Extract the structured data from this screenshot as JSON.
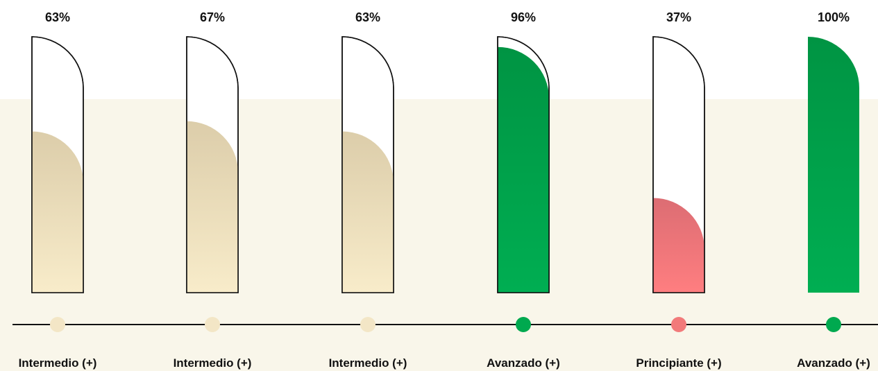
{
  "chart_data": {
    "type": "bar",
    "title": "",
    "xlabel": "",
    "ylabel": "",
    "ylim": [
      0,
      100
    ],
    "grid": false,
    "categories": [
      "Intermedio (+)",
      "Intermedio (+)",
      "Intermedio (+)",
      "Avanzado (+)",
      "Principiante (+)",
      "Avanzado (+)"
    ],
    "values": [
      63,
      67,
      63,
      96,
      37,
      100
    ],
    "value_labels": [
      "63%",
      "67%",
      "63%",
      "96%",
      "37%",
      "100%"
    ],
    "level_colors": {
      "Intermedio (+)": "#f3e6c6",
      "Avanzado (+)": "#00a94f",
      "Principiante (+)": "#f27a7a"
    }
  }
}
